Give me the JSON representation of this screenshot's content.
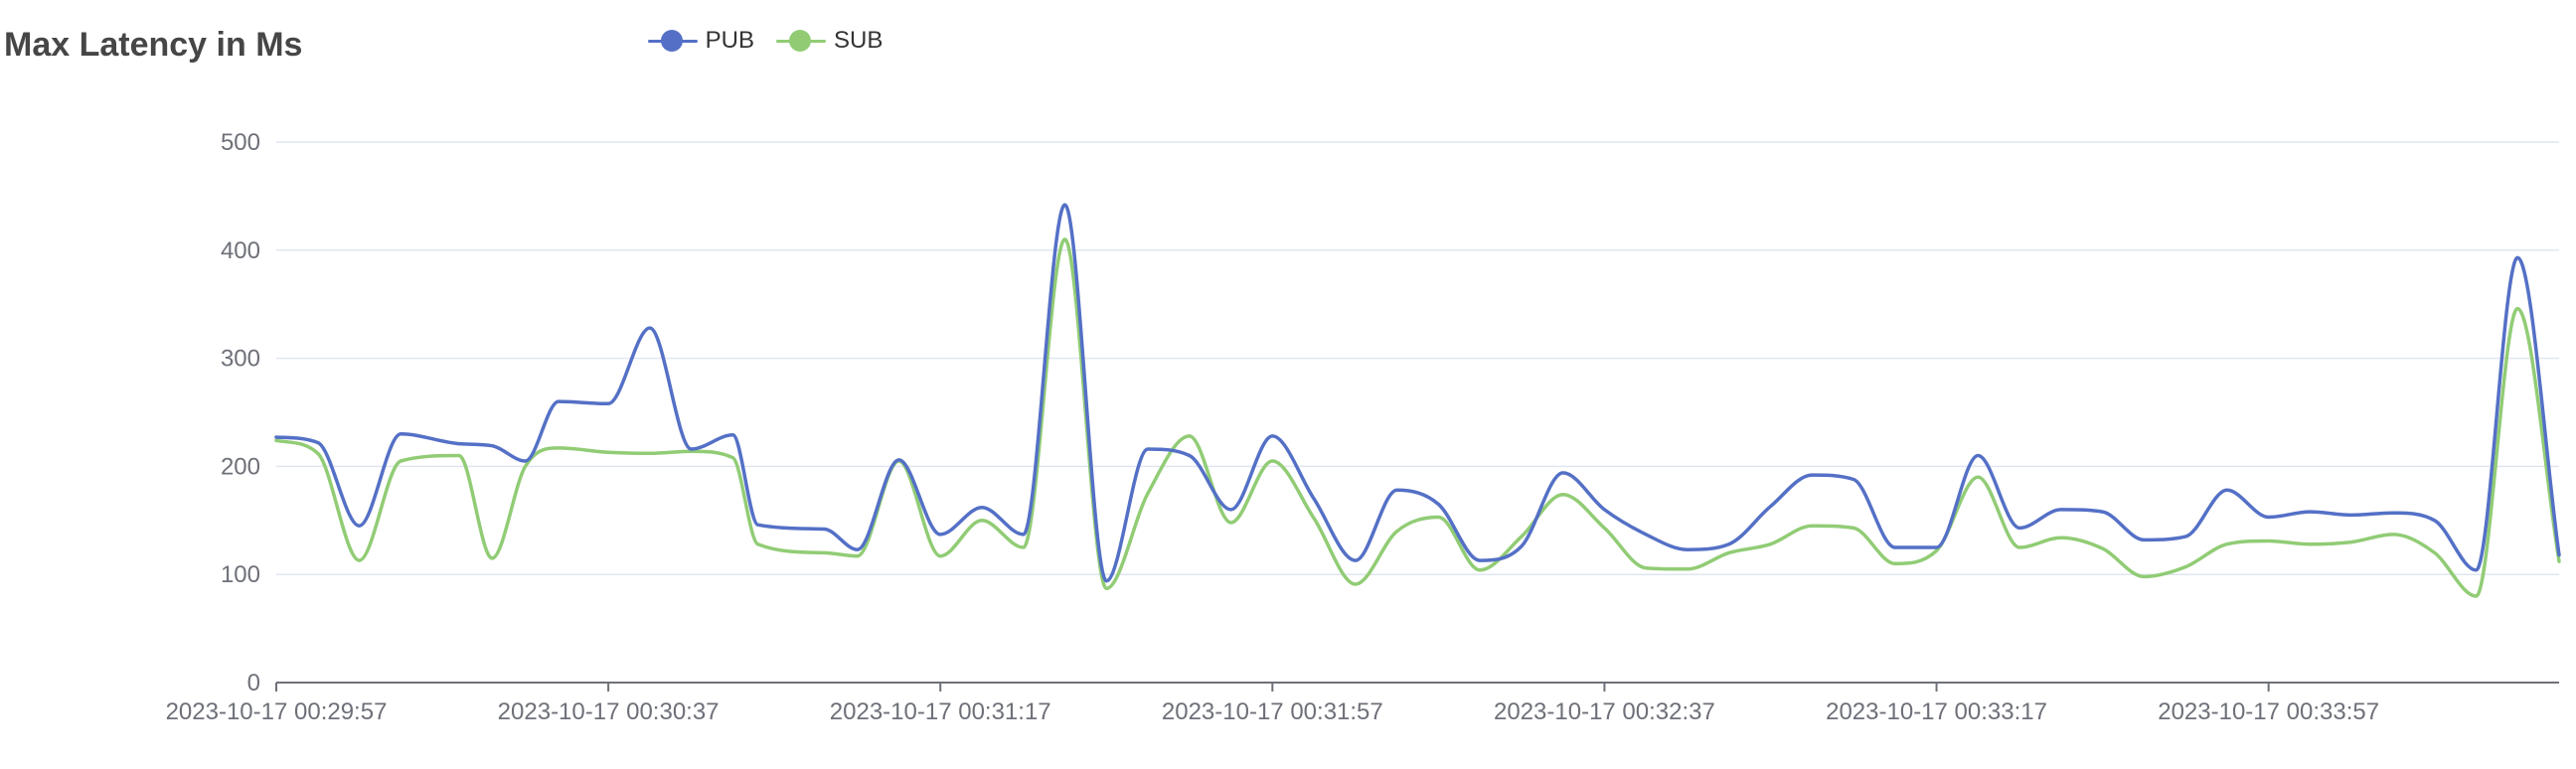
{
  "chart_data": {
    "type": "line",
    "title": "Max Latency in Ms",
    "xlabel": "",
    "ylabel": "",
    "ylim": [
      0,
      500
    ],
    "yticks": [
      0,
      100,
      200,
      300,
      400,
      500
    ],
    "grid": true,
    "legend_position": "top-center",
    "x_tick_labels": [
      "2023-10-17 00:29:57",
      "2023-10-17 00:30:37",
      "2023-10-17 00:31:17",
      "2023-10-17 00:31:57",
      "2023-10-17 00:32:37",
      "2023-10-17 00:33:17",
      "2023-10-17 00:33:57"
    ],
    "x_tick_seconds_from_start": [
      0,
      40,
      80,
      120,
      160,
      200,
      240
    ],
    "x_range_seconds": [
      0,
      275
    ],
    "series": [
      {
        "name": "PUB",
        "color": "#5470c6",
        "points": [
          [
            0,
            227
          ],
          [
            5,
            222
          ],
          [
            10,
            145
          ],
          [
            15,
            230
          ],
          [
            22,
            221
          ],
          [
            26,
            219
          ],
          [
            30,
            205
          ],
          [
            34,
            260
          ],
          [
            40,
            258
          ],
          [
            45,
            328
          ],
          [
            50,
            216
          ],
          [
            55,
            229
          ],
          [
            58,
            146
          ],
          [
            66,
            142
          ],
          [
            70,
            123
          ],
          [
            75,
            206
          ],
          [
            80,
            137
          ],
          [
            85,
            162
          ],
          [
            90,
            137
          ],
          [
            95,
            442
          ],
          [
            100,
            94
          ],
          [
            105,
            216
          ],
          [
            110,
            210
          ],
          [
            115,
            160
          ],
          [
            120,
            228
          ],
          [
            125,
            170
          ],
          [
            130,
            113
          ],
          [
            135,
            178
          ],
          [
            140,
            165
          ],
          [
            145,
            113
          ],
          [
            150,
            126
          ],
          [
            155,
            194
          ],
          [
            160,
            160
          ],
          [
            165,
            137
          ],
          [
            170,
            123
          ],
          [
            175,
            128
          ],
          [
            180,
            163
          ],
          [
            185,
            192
          ],
          [
            190,
            188
          ],
          [
            195,
            125
          ],
          [
            200,
            125
          ],
          [
            205,
            210
          ],
          [
            210,
            143
          ],
          [
            215,
            160
          ],
          [
            220,
            158
          ],
          [
            225,
            132
          ],
          [
            230,
            135
          ],
          [
            235,
            178
          ],
          [
            240,
            153
          ],
          [
            245,
            158
          ],
          [
            250,
            155
          ],
          [
            255,
            157
          ],
          [
            260,
            150
          ],
          [
            265,
            104
          ],
          [
            270,
            393
          ],
          [
            275,
            118
          ]
        ]
      },
      {
        "name": "SUB",
        "color": "#91cc75",
        "points": [
          [
            0,
            224
          ],
          [
            5,
            212
          ],
          [
            10,
            113
          ],
          [
            15,
            205
          ],
          [
            22,
            210
          ],
          [
            26,
            115
          ],
          [
            30,
            200
          ],
          [
            34,
            217
          ],
          [
            40,
            213
          ],
          [
            45,
            212
          ],
          [
            50,
            214
          ],
          [
            55,
            208
          ],
          [
            58,
            128
          ],
          [
            66,
            120
          ],
          [
            70,
            117
          ],
          [
            75,
            205
          ],
          [
            80,
            117
          ],
          [
            85,
            150
          ],
          [
            90,
            125
          ],
          [
            95,
            410
          ],
          [
            100,
            87
          ],
          [
            105,
            175
          ],
          [
            110,
            228
          ],
          [
            115,
            148
          ],
          [
            120,
            205
          ],
          [
            125,
            152
          ],
          [
            130,
            91
          ],
          [
            135,
            140
          ],
          [
            140,
            153
          ],
          [
            145,
            104
          ],
          [
            150,
            135
          ],
          [
            155,
            174
          ],
          [
            160,
            143
          ],
          [
            165,
            106
          ],
          [
            170,
            105
          ],
          [
            175,
            120
          ],
          [
            180,
            128
          ],
          [
            185,
            145
          ],
          [
            190,
            143
          ],
          [
            195,
            110
          ],
          [
            200,
            122
          ],
          [
            205,
            190
          ],
          [
            210,
            125
          ],
          [
            215,
            134
          ],
          [
            220,
            124
          ],
          [
            225,
            98
          ],
          [
            230,
            107
          ],
          [
            235,
            128
          ],
          [
            240,
            131
          ],
          [
            245,
            128
          ],
          [
            250,
            130
          ],
          [
            255,
            137
          ],
          [
            260,
            120
          ],
          [
            265,
            80
          ],
          [
            270,
            346
          ],
          [
            275,
            112
          ]
        ]
      }
    ]
  }
}
